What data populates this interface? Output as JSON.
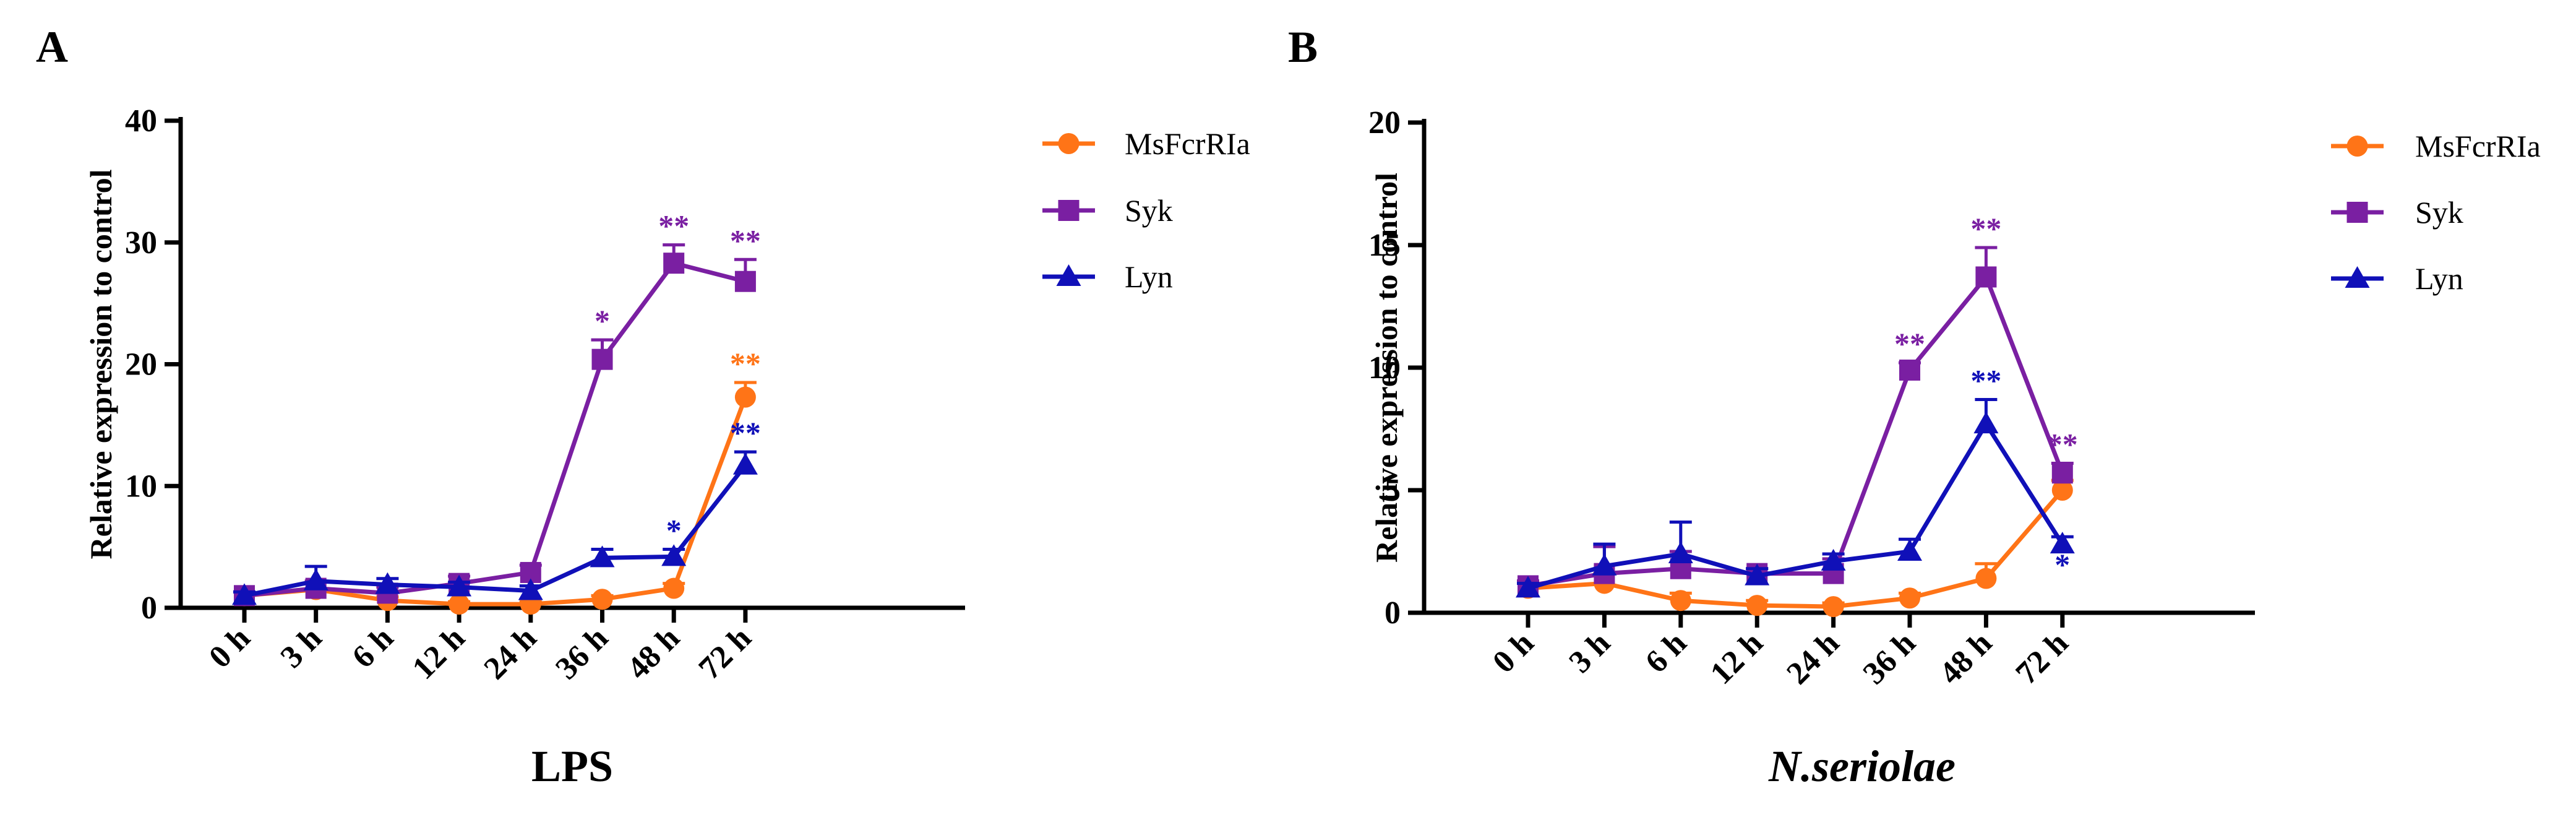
{
  "chart_data": [
    {
      "type": "line",
      "panel_label": "A",
      "title": "LPS",
      "title_italic": false,
      "xlabel": "LPS",
      "ylabel": "Relative expression to control",
      "categories": [
        "0 h",
        "3 h",
        "6 h",
        "12 h",
        "24 h",
        "36 h",
        "48 h",
        "72 h"
      ],
      "ylim": [
        0,
        40
      ],
      "yticks": [
        0,
        10,
        20,
        30,
        40
      ],
      "legend_position": "right",
      "series": [
        {
          "name": "MsFcrRIa",
          "color": "#FF7417",
          "marker": "circle",
          "values": [
            1.0,
            1.5,
            0.6,
            0.3,
            0.3,
            0.7,
            1.6,
            17.3
          ],
          "errors": [
            0.3,
            0.6,
            0.3,
            0.2,
            0.2,
            0.3,
            0.4,
            1.2
          ],
          "sig": [
            "",
            "",
            "",
            "",
            "",
            "",
            "",
            "**"
          ]
        },
        {
          "name": "Syk",
          "color": "#7A1FA2",
          "marker": "square",
          "values": [
            1.0,
            1.6,
            1.2,
            2.0,
            2.9,
            20.4,
            28.3,
            26.8
          ],
          "errors": [
            0.3,
            0.6,
            0.5,
            0.6,
            0.6,
            1.6,
            1.5,
            1.8
          ],
          "sig": [
            "",
            "",
            "",
            "",
            "",
            "*",
            "**",
            "**"
          ]
        },
        {
          "name": "Lyn",
          "color": "#1010B8",
          "marker": "triangle",
          "values": [
            1.0,
            2.2,
            1.9,
            1.7,
            1.4,
            4.1,
            4.2,
            11.7
          ],
          "errors": [
            0.3,
            1.2,
            0.5,
            0.4,
            0.4,
            0.7,
            0.6,
            1.1
          ],
          "sig": [
            "",
            "",
            "",
            "",
            "",
            "",
            "*",
            "**"
          ]
        }
      ]
    },
    {
      "type": "line",
      "panel_label": "B",
      "title": "N.seriolae",
      "title_italic": true,
      "xlabel": "N.seriolae",
      "ylabel": "Relative expression to control",
      "categories": [
        "0 h",
        "3 h",
        "6 h",
        "12 h",
        "24 h",
        "36 h",
        "48 h",
        "72 h"
      ],
      "ylim": [
        0,
        20
      ],
      "yticks": [
        0,
        5,
        10,
        15,
        20
      ],
      "legend_position": "right",
      "series": [
        {
          "name": "MsFcrRIa",
          "color": "#FF7417",
          "marker": "circle",
          "values": [
            1.0,
            1.2,
            0.5,
            0.3,
            0.25,
            0.6,
            1.4,
            5.0
          ],
          "errors": [
            0.2,
            0.4,
            0.3,
            0.2,
            0.15,
            0.2,
            0.6,
            0.4
          ],
          "sig": [
            "",
            "",
            "",
            "",
            "",
            "",
            "",
            ""
          ]
        },
        {
          "name": "Syk",
          "color": "#7A1FA2",
          "marker": "square",
          "values": [
            1.1,
            1.6,
            1.8,
            1.6,
            1.6,
            9.9,
            13.7,
            5.7
          ],
          "errors": [
            0.2,
            1.1,
            0.7,
            0.2,
            0.6,
            0.3,
            1.2,
            0.4
          ],
          "sig": [
            "",
            "",
            "",
            "",
            "",
            "**",
            "**",
            "**"
          ]
        },
        {
          "name": "Lyn",
          "color": "#1010B8",
          "marker": "triangle",
          "values": [
            1.0,
            1.9,
            2.4,
            1.5,
            2.1,
            2.5,
            7.7,
            2.8
          ],
          "errors": [
            0.2,
            0.9,
            1.3,
            0.3,
            0.3,
            0.5,
            1.0,
            0.3
          ],
          "sig": [
            "",
            "",
            "",
            "",
            "",
            "",
            "**",
            "*"
          ]
        }
      ]
    }
  ]
}
